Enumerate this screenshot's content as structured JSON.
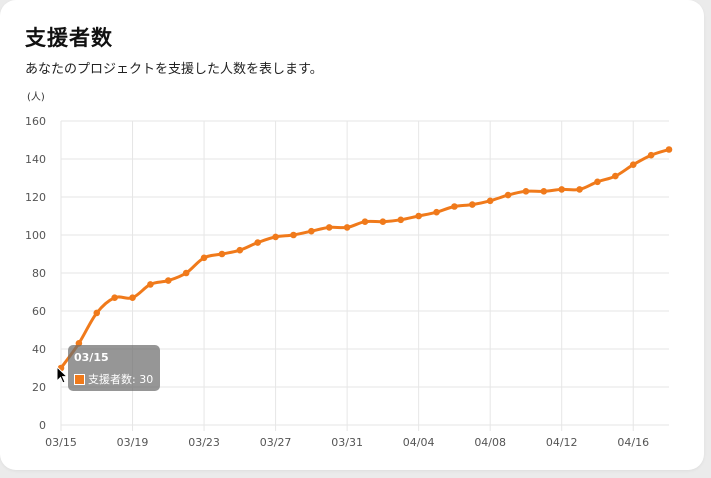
{
  "header": {
    "title": "支援者数",
    "subtitle": "あなたのプロジェクトを支援した人数を表します。"
  },
  "colors": {
    "series": "#f07a1b",
    "grid": "#e6e6e6",
    "axis_text": "#555555"
  },
  "tooltip": {
    "title": "03/15",
    "label": "支援者数: 30"
  },
  "chart_data": {
    "type": "line",
    "ylabel": "(人)",
    "ylim": [
      0,
      160
    ],
    "y_ticks": [
      0,
      20,
      40,
      60,
      80,
      100,
      120,
      140,
      160
    ],
    "x_tick_labels": [
      "03/15",
      "03/19",
      "03/23",
      "03/27",
      "03/31",
      "04/04",
      "04/08",
      "04/12",
      "04/16"
    ],
    "grid": true,
    "series": [
      {
        "name": "支援者数",
        "x": [
          "03/15",
          "03/16",
          "03/17",
          "03/18",
          "03/19",
          "03/20",
          "03/21",
          "03/22",
          "03/23",
          "03/24",
          "03/25",
          "03/26",
          "03/27",
          "03/28",
          "03/29",
          "03/30",
          "03/31",
          "04/01",
          "04/02",
          "04/03",
          "04/04",
          "04/05",
          "04/06",
          "04/07",
          "04/08",
          "04/09",
          "04/10",
          "04/11",
          "04/12",
          "04/13",
          "04/14",
          "04/15",
          "04/16",
          "04/17",
          "04/18"
        ],
        "values": [
          30,
          43,
          59,
          67,
          67,
          74,
          76,
          80,
          88,
          90,
          92,
          96,
          99,
          100,
          102,
          104,
          104,
          107,
          107,
          108,
          110,
          112,
          115,
          116,
          118,
          121,
          123,
          123,
          124,
          124,
          128,
          131,
          137,
          142,
          145
        ]
      }
    ]
  }
}
